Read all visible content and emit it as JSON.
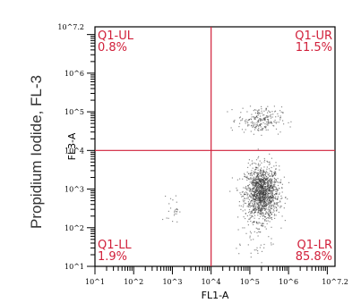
{
  "outer_ylabel": "Propidium Iodide, FL-3",
  "chart_data": {
    "type": "scatter",
    "title": "",
    "xlabel": "FL1-A",
    "ylabel": "FL3-A",
    "xscale": "log",
    "yscale": "log",
    "xlim": [
      1,
      7.2
    ],
    "ylim": [
      1,
      7.2
    ],
    "x_tick_labels": [
      "10^1",
      "10^2",
      "10^3",
      "10^4",
      "10^5",
      "10^6",
      "10^7.2"
    ],
    "y_tick_labels": [
      "10^1",
      "10^2",
      "10^3",
      "10^4",
      "10^5",
      "10^6",
      "10^7.2"
    ],
    "gate": {
      "x": 4.0,
      "y": 4.0
    },
    "quadrants": [
      {
        "name": "Q1-UL",
        "percent": "0.8%"
      },
      {
        "name": "Q1-UR",
        "percent": "11.5%"
      },
      {
        "name": "Q1-LL",
        "percent": "1.9%"
      },
      {
        "name": "Q1-LR",
        "percent": "85.8%"
      }
    ],
    "clusters": [
      {
        "cx": 5.3,
        "cy": 2.9,
        "sx": 0.22,
        "sy": 0.35,
        "n": 1400
      },
      {
        "cx": 5.25,
        "cy": 4.8,
        "sx": 0.28,
        "sy": 0.17,
        "n": 220
      },
      {
        "cx": 3.0,
        "cy": 2.5,
        "sx": 0.08,
        "sy": 0.18,
        "n": 25
      },
      {
        "cx": 5.1,
        "cy": 1.7,
        "sx": 0.25,
        "sy": 0.35,
        "n": 40
      }
    ],
    "colors": {
      "gate": "#d11f3a",
      "points": "#333333",
      "axis": "#000000"
    }
  }
}
